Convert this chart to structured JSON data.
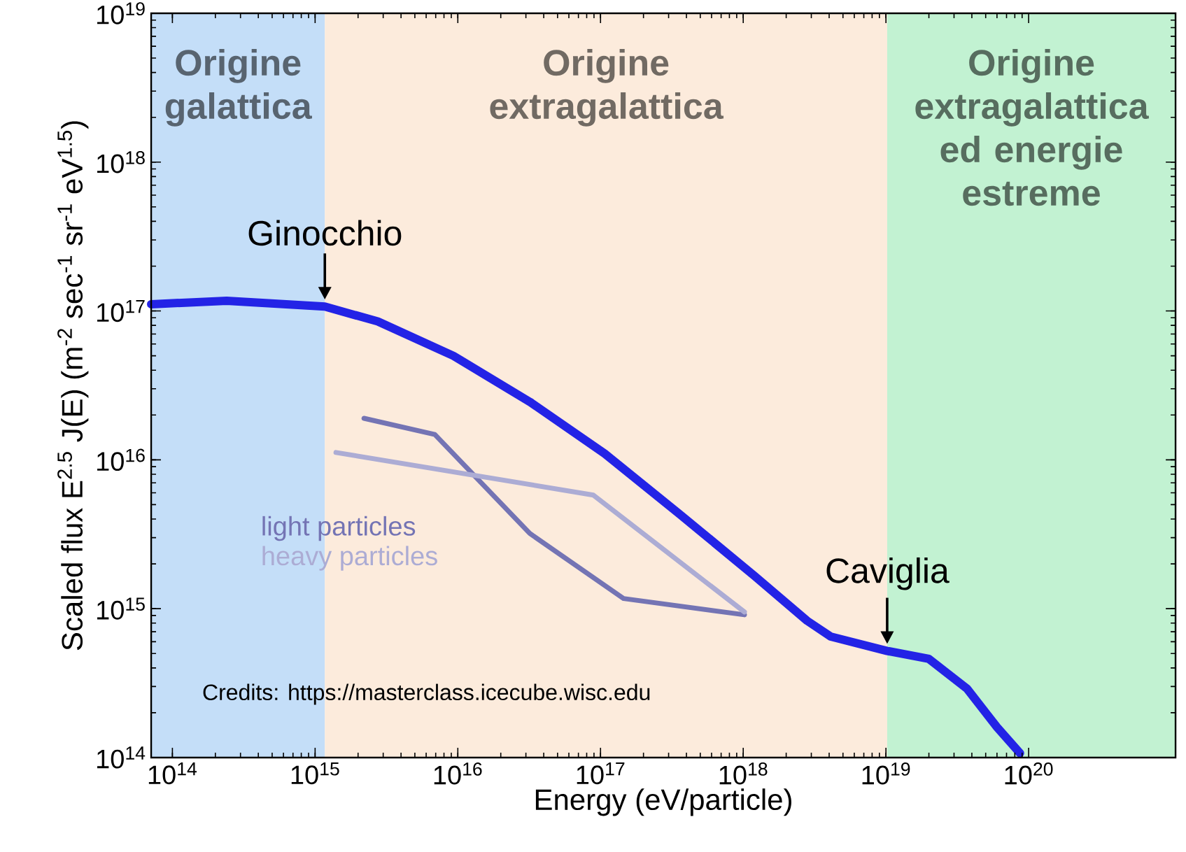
{
  "chart_data": {
    "type": "line",
    "xlabel": "Energy          (eV/particle)",
    "ylabel": "Scaled flux E$^{2.5}$ J(E)   (m$^{-2}$ sec$^{-1}$ sr$^{-1}$ eV$^{1.5}$)",
    "log": "xy",
    "xlim": [
      71000000000000.0,
      1.07e+21
    ],
    "ylim": [
      100000000000000.0,
      1e+19
    ],
    "xticks": [
      {
        "value": 100000000000000.0,
        "label": "10$^{14}$"
      },
      {
        "value": 1000000000000000.0,
        "label": "10$^{15}$"
      },
      {
        "value": 1e+16,
        "label": "10$^{16}$"
      },
      {
        "value": 1e+17,
        "label": "10$^{17}$"
      },
      {
        "value": 1e+18,
        "label": "10$^{18}$"
      },
      {
        "value": 1e+19,
        "label": "10$^{19}$"
      },
      {
        "value": 1e+20,
        "label": "10$^{20}$"
      }
    ],
    "yticks": [
      {
        "value": 100000000000000.0,
        "label": "10$^{14}$"
      },
      {
        "value": 1000000000000000.0,
        "label": "10$^{15}$"
      },
      {
        "value": 1e+16,
        "label": "10$^{16}$"
      },
      {
        "value": 1e+17,
        "label": "10$^{17}$"
      },
      {
        "value": 1e+18,
        "label": "10$^{18}$"
      },
      {
        "value": 1e+19,
        "label": "10$^{19}$"
      }
    ],
    "series": [
      {
        "color": "#2323e6",
        "x": [
          71000000000000.0,
          240000000000000.0,
          1170000000000000.0,
          2750000000000000.0,
          9300000000000000.0,
          3.2e+16,
          1.07e+17,
          3.6e+17,
          1.2e+18,
          2.8e+18,
          4.1e+18,
          1.02e+19,
          2e+19,
          3.7e+19,
          6e+19,
          8.7e+19
        ],
        "values": [
          1.11e+17,
          1.17e+17,
          1.07e+17,
          8.5e+16,
          5e+16,
          2.45e+16,
          1.1e+16,
          4300000000000000.0,
          1660000000000000.0,
          830000000000000.0,
          650000000000000.0,
          520000000000000.0,
          460000000000000.0,
          290000000000000.0,
          160000000000000.0,
          107000000000000.0
        ]
      },
      {
        "name": "light particles",
        "color": "#7474b4",
        "x": [
          2200000000000000.0,
          6900000000000000.0,
          3.2e+16,
          1.45e+17,
          1.02e+18
        ],
        "values": [
          1.9e+16,
          1.48e+16,
          3200000000000000.0,
          1170000000000000.0,
          910000000000000.0
        ]
      },
      {
        "name": "heavy particles",
        "color": "#acacd4",
        "x": [
          1400000000000000.0,
          8.9e+16,
          1.02e+18
        ],
        "values": [
          1.12e+16,
          5800000000000000.0,
          950000000000000.0
        ]
      }
    ],
    "bands": [
      {
        "axis": "x",
        "from": 71000000000000.0,
        "to": 1170000000000000.0,
        "label": "Origine galattica",
        "color": "#c4def8"
      },
      {
        "axis": "x",
        "from": 1170000000000000.0,
        "to": 1.02e+19,
        "label": "Origine extragalattica",
        "color": "#fcebdc"
      },
      {
        "axis": "x",
        "from": 1.02e+19,
        "to": 1.07e+21,
        "label": "Origine extragalattica ed energie estreme",
        "color": "#c2f2d2"
      }
    ],
    "annotations": [
      {
        "text": "Ginocchio",
        "x": 1170000000000000.0,
        "y": 1.07e+17
      },
      {
        "text": "Caviglia",
        "x": 1.02e+19,
        "y": 520000000000000.0
      },
      "Credits: https://masterclass.icecube.wisc.edu"
    ],
    "legend": "left",
    "marker": "none",
    "line_style": "solid"
  }
}
